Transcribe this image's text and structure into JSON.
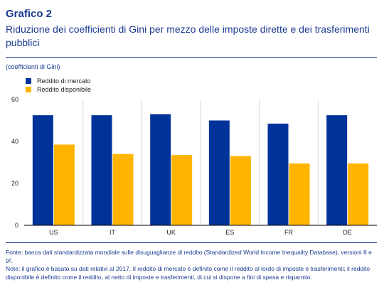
{
  "header": {
    "label": "Grafico 2",
    "title": "Riduzione dei coefficienti di Gini per mezzo delle imposte dirette e dei trasferimenti pubblici",
    "subtitle": "(coefficienti di Gini)"
  },
  "colors": {
    "series1": "#003399",
    "series2": "#ffb400",
    "grid": "#d9d9d9",
    "axis": "#000000"
  },
  "chart_data": {
    "type": "bar",
    "categories": [
      "US",
      "IT",
      "UK",
      "ES",
      "FR",
      "DE"
    ],
    "series": [
      {
        "name": "Reddito di mercato",
        "values": [
          52.5,
          52.5,
          53,
          50,
          48.5,
          52.5
        ]
      },
      {
        "name": "Reddito disponibile",
        "values": [
          38.5,
          34,
          33.5,
          33,
          29.5,
          29.5
        ]
      }
    ],
    "yticks": [
      0,
      20,
      40,
      60
    ],
    "ylim": [
      0,
      60
    ],
    "grid": "vertical separators",
    "legend": "top-left"
  },
  "footnote": {
    "source": "Fonte: banca dati standardizzata mondiale sulle disuguaglianze di reddito (Standardized World Income Inequality Database), versioni 8 e 9².",
    "note": "Note: il grafico è basato su dati relativi al 2017. Il reddito di mercato è definito come il reddito al lordo di imposte e trasferimenti; il reddito disponibile è definito come il reddito, al netto di imposte e trasferimenti, di cui si dispone a fini di spesa e risparmio."
  }
}
